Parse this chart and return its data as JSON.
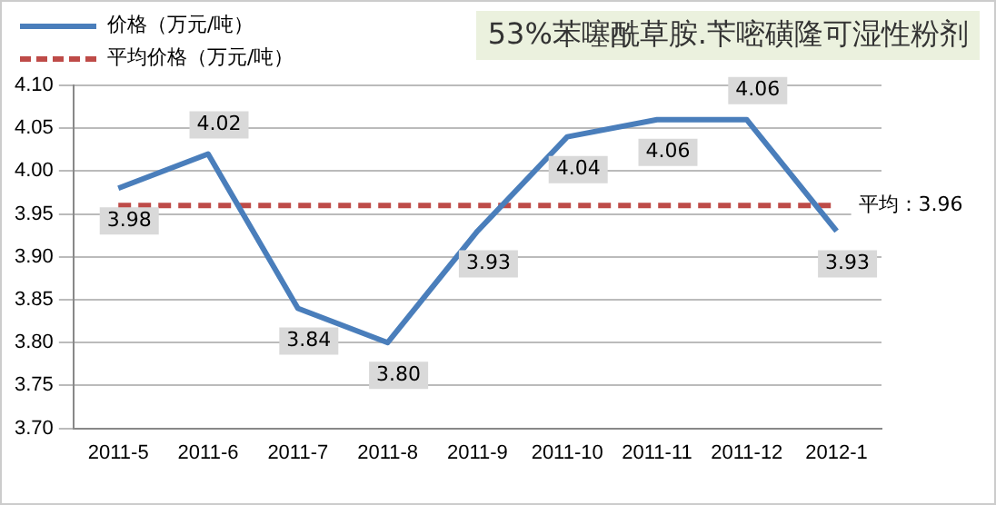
{
  "chart_data": {
    "type": "line",
    "title": "53%苯噻酰草胺.苄嘧磺隆可湿性粉剂",
    "categories": [
      "2011-5",
      "2011-6",
      "2011-7",
      "2011-8",
      "2011-9",
      "2011-10",
      "2011-11",
      "2011-12",
      "2012-1"
    ],
    "series": [
      {
        "name": "价格（万元/吨）",
        "color": "#4a7ebb",
        "line_style": "solid",
        "values": [
          3.98,
          4.02,
          3.84,
          3.8,
          3.93,
          4.04,
          4.06,
          4.06,
          3.93
        ],
        "value_labels": [
          "3.98",
          "4.02",
          "3.84",
          "3.80",
          "3.93",
          "4.04",
          "4.06",
          "4.06",
          "3.93"
        ]
      },
      {
        "name": "平均价格（万元/吨）",
        "color": "#be4b48",
        "line_style": "dashed",
        "values": [
          3.96,
          3.96,
          3.96,
          3.96,
          3.96,
          3.96,
          3.96,
          3.96,
          3.96
        ]
      }
    ],
    "annotations": [
      {
        "text": "平均：3.96",
        "x": "2012-1",
        "y": 3.96
      }
    ],
    "ylim": [
      3.7,
      4.1
    ],
    "yticks": [
      {
        "value": 3.7,
        "label": "3.70"
      },
      3.75,
      {
        "value": 3.8,
        "label": "3.80"
      },
      3.85,
      {
        "value": 3.9,
        "label": "3.90"
      },
      3.95,
      {
        "value": 4,
        "label": "4.00"
      },
      4.05,
      {
        "value": 4.1,
        "label": "4.10"
      }
    ],
    "grid": "y",
    "legend": "top left",
    "marker": "none"
  }
}
